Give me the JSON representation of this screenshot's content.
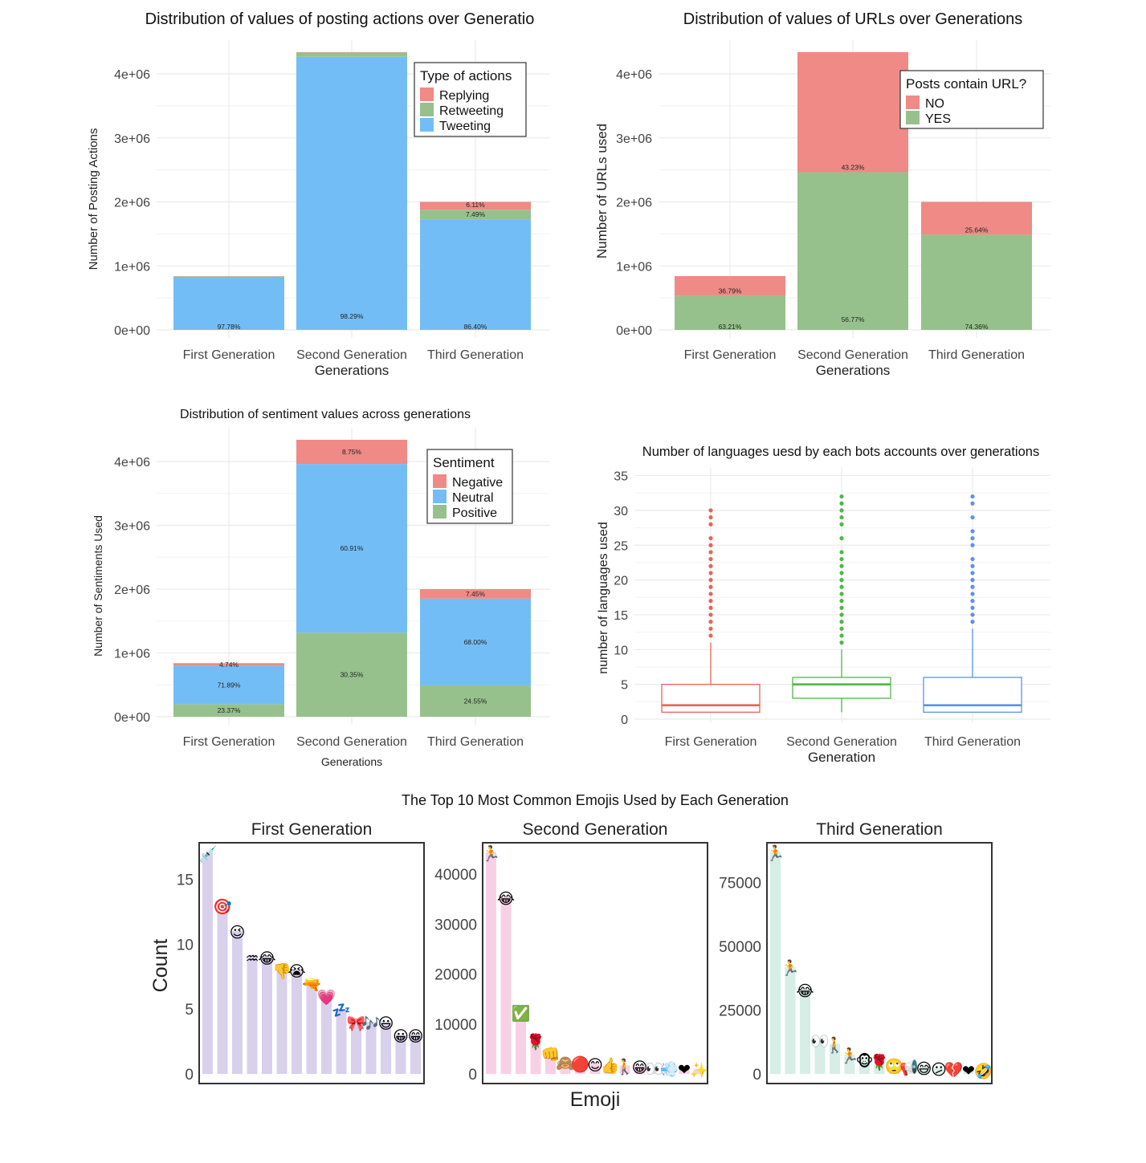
{
  "colors": {
    "red": "#EF8A86",
    "green": "#96C18C",
    "blue": "#73BDF6",
    "box_red": "#E8635B",
    "box_green": "#4DB847",
    "box_blue": "#5F8FF5",
    "emoji_first": "#D9D0EC",
    "emoji_second": "#F8D0E6",
    "emoji_third": "#D6EEE5"
  },
  "chart_data": [
    {
      "type": "bar",
      "stacked": true,
      "title": "Distribution of values of posting actions over Generatio",
      "xlabel": "Generations",
      "ylabel": "Number of Posting Actions",
      "categories": [
        "First Generation",
        "Second Generation",
        "Third Generation"
      ],
      "yticks": [
        0,
        1000000,
        2000000,
        3000000,
        4000000
      ],
      "ytick_labels": [
        "0e+00",
        "1e+06",
        "2e+06",
        "3e+06",
        "4e+06"
      ],
      "ylim": [
        0,
        4400000
      ],
      "grid": true,
      "legend": {
        "title": "Type of actions",
        "position": "top-right"
      },
      "series": [
        {
          "name": "Replying",
          "color": "#EF8A86",
          "values": [
            3600,
            6200,
            122000
          ],
          "labels": [
            "",
            "",
            "6.11%"
          ]
        },
        {
          "name": "Retweeting",
          "color": "#96C18C",
          "values": [
            15000,
            68000,
            150000
          ],
          "labels": [
            "",
            "",
            "7.49%"
          ]
        },
        {
          "name": "Tweeting",
          "color": "#73BDF6",
          "values": [
            821400,
            4265800,
            1728000
          ],
          "labels": [
            "97.78%",
            "98.29%",
            "86.40%"
          ]
        }
      ]
    },
    {
      "type": "bar",
      "stacked": true,
      "title": "Distribution of values of URLs over Generations",
      "xlabel": "Generations",
      "ylabel": "Number of URLs used",
      "categories": [
        "First Generation",
        "Second Generation",
        "Third Generation"
      ],
      "yticks": [
        0,
        1000000,
        2000000,
        3000000,
        4000000
      ],
      "ytick_labels": [
        "0e+00",
        "1e+06",
        "2e+06",
        "3e+06",
        "4e+06"
      ],
      "ylim": [
        0,
        4400000
      ],
      "grid": true,
      "legend": {
        "title": "Posts contain URL?",
        "position": "top-right"
      },
      "series": [
        {
          "name": "NO",
          "color": "#EF8A86",
          "values": [
            309000,
            1876000,
            513000
          ],
          "labels": [
            "36.79%",
            "43.23%",
            "25.64%"
          ]
        },
        {
          "name": "YES",
          "color": "#96C18C",
          "values": [
            531000,
            2464000,
            1487000
          ],
          "labels": [
            "63.21%",
            "56.77%",
            "74.36%"
          ]
        }
      ]
    },
    {
      "type": "bar",
      "stacked": true,
      "title": "Distribution of sentiment values across generations",
      "xlabel": "Generations",
      "ylabel": "Number of Sentiments Used",
      "categories": [
        "First Generation",
        "Second Generation",
        "Third Generation"
      ],
      "yticks": [
        0,
        1000000,
        2000000,
        3000000,
        4000000
      ],
      "ytick_labels": [
        "0e+00",
        "1e+06",
        "2e+06",
        "3e+06",
        "4e+06"
      ],
      "ylim": [
        0,
        4400000
      ],
      "grid": true,
      "legend": {
        "title": "Sentiment",
        "position": "top-right"
      },
      "series": [
        {
          "name": "Negative",
          "color": "#EF8A86",
          "values": [
            39800,
            379800,
            149000
          ],
          "labels": [
            "4.74%",
            "8.75%",
            "7.45%"
          ]
        },
        {
          "name": "Neutral",
          "color": "#73BDF6",
          "values": [
            603900,
            2643500,
            1360000
          ],
          "labels": [
            "71.89%",
            "60.91%",
            "68.00%"
          ]
        },
        {
          "name": "Positive",
          "color": "#96C18C",
          "values": [
            196300,
            1317200,
            491000
          ],
          "labels": [
            "23.37%",
            "30.35%",
            "24.55%"
          ]
        }
      ]
    },
    {
      "type": "boxplot",
      "title": "Number of languages uesd by each bots accounts over generations",
      "xlabel": "Generation",
      "ylabel": "number of languages used",
      "categories": [
        "First Generation",
        "Second Generation",
        "Third Generation"
      ],
      "yticks": [
        0,
        5,
        10,
        15,
        20,
        25,
        30,
        35
      ],
      "ytick_labels": [
        "0",
        "5",
        "10",
        "15",
        "20",
        "25",
        "30",
        "35"
      ],
      "ylim": [
        0,
        35
      ],
      "grid": true,
      "boxes": [
        {
          "color": "#E8635B",
          "whisker_low": 1,
          "q1": 1,
          "median": 2,
          "q3": 5,
          "whisker_high": 11,
          "outliers": [
            12,
            13,
            14,
            15,
            16,
            17,
            18,
            19,
            20,
            21,
            22,
            23,
            24,
            25,
            26,
            28,
            29,
            30
          ]
        },
        {
          "color": "#4DB847",
          "whisker_low": 1,
          "q1": 3,
          "median": 5,
          "q3": 6,
          "whisker_high": 10,
          "outliers": [
            11,
            12,
            13,
            14,
            15,
            16,
            17,
            18,
            19,
            20,
            21,
            22,
            23,
            24,
            26,
            28,
            29,
            30,
            31,
            32
          ]
        },
        {
          "color": "#5F8FF5",
          "whisker_low": 1,
          "q1": 1,
          "median": 2,
          "q3": 6,
          "whisker_high": 13,
          "outliers": [
            14,
            15,
            16,
            17,
            18,
            19,
            20,
            21,
            22,
            23,
            25,
            26,
            27,
            29,
            31,
            32
          ]
        }
      ]
    },
    {
      "type": "bar",
      "title": "The Top 10 Most Common Emojis Used by Each Generation",
      "xlabel": "Emoji",
      "ylabel": "Count",
      "facets": [
        {
          "name": "First Generation",
          "color": "#D9D0EC",
          "yticks": [
            0,
            5,
            10,
            15
          ],
          "ytick_labels": [
            "0",
            "5",
            "10",
            "15"
          ],
          "ylim": [
            0,
            17.5
          ],
          "emojis": [
            "💉",
            "🎯",
            "😉",
            "♒",
            "😂",
            "👎",
            "😭",
            "🔫",
            "💗",
            "💤",
            "🎀",
            "🎶",
            "😃",
            "😀",
            "😁"
          ],
          "values": [
            17,
            13,
            11,
            9,
            9,
            8,
            8,
            7,
            6,
            5,
            4,
            4,
            4,
            3,
            3
          ]
        },
        {
          "name": "Second Generation",
          "color": "#F8D0E6",
          "yticks": [
            0,
            10000,
            20000,
            30000,
            40000
          ],
          "ytick_labels": [
            "0",
            "10000",
            "20000",
            "30000",
            "40000"
          ],
          "ylim": [
            0,
            45500
          ],
          "emojis": [
            "🏃",
            "😂",
            "✅",
            "🌹",
            "👊",
            "🙈",
            "🔴",
            "😊",
            "👍",
            "🚶",
            "😁",
            "👀",
            "💨",
            "❤",
            "✨"
          ],
          "values": [
            44400,
            35400,
            12400,
            6700,
            4200,
            2400,
            2200,
            2000,
            1900,
            1700,
            1500,
            1300,
            1200,
            1100,
            1000
          ]
        },
        {
          "name": "Third Generation",
          "color": "#D6EEE5",
          "yticks": [
            0,
            25000,
            50000,
            75000
          ],
          "ytick_labels": [
            "0",
            "25000",
            "50000",
            "75000"
          ],
          "ylim": [
            0,
            89000
          ],
          "emojis": [
            "🏃",
            "🏃",
            "😂",
            "👀",
            "🚶",
            "🏃",
            "🐵",
            "🌹",
            "🙄",
            "📢",
            "😅",
            "😕",
            "💔",
            "❤",
            "🤣"
          ],
          "values": [
            87000,
            42000,
            33000,
            13400,
            11800,
            7500,
            5500,
            5000,
            3500,
            3000,
            2500,
            2200,
            2000,
            1800,
            1600
          ]
        }
      ]
    }
  ]
}
